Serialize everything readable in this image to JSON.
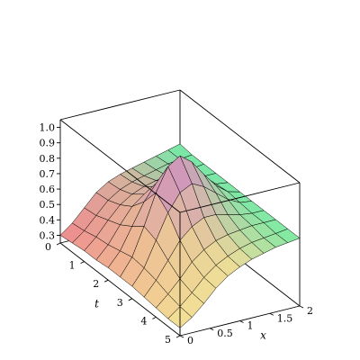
{
  "chart_data": {
    "type": "surface3d",
    "xlabel": "x",
    "ylabel": "t",
    "zlabel": "",
    "x_range": [
      0,
      2
    ],
    "t_range": [
      0,
      5
    ],
    "z_range": [
      0.25,
      1.05
    ],
    "x_ticks": [
      {
        "value": 0,
        "label": "0"
      },
      {
        "value": 0.5,
        "label": "0.5"
      },
      {
        "value": 1,
        "label": "1"
      },
      {
        "value": 1.5,
        "label": "1.5"
      },
      {
        "value": 2,
        "label": "2"
      }
    ],
    "t_ticks": [
      {
        "value": 0,
        "label": "0"
      },
      {
        "value": 1,
        "label": "1"
      },
      {
        "value": 2,
        "label": "2"
      },
      {
        "value": 3,
        "label": "3"
      },
      {
        "value": 4,
        "label": "4"
      },
      {
        "value": 5,
        "label": "5"
      }
    ],
    "z_ticks": [
      {
        "value": 0.3,
        "label": "0.3"
      },
      {
        "value": 0.4,
        "label": "0.4"
      },
      {
        "value": 0.5,
        "label": "0.5"
      },
      {
        "value": 0.6,
        "label": "0.6"
      },
      {
        "value": 0.7,
        "label": "0.7"
      },
      {
        "value": 0.8,
        "label": "0.8"
      },
      {
        "value": 0.9,
        "label": "0.9"
      },
      {
        "value": 1.0,
        "label": "1.0"
      }
    ],
    "x_values": [
      0,
      0.2,
      0.4,
      0.6,
      0.8,
      1.0,
      1.2,
      1.4,
      1.6,
      1.8,
      2.0
    ],
    "t_values": [
      0,
      0.5,
      1.0,
      1.5,
      2.0,
      2.5,
      3.0,
      3.5,
      4.0,
      4.5,
      5.0
    ],
    "z_values": [
      [
        0.3,
        0.36,
        0.44,
        0.52,
        0.57,
        0.6,
        0.62,
        0.64,
        0.66,
        0.68,
        0.7
      ],
      [
        0.31,
        0.37,
        0.45,
        0.53,
        0.58,
        0.61,
        0.63,
        0.65,
        0.67,
        0.68,
        0.69
      ],
      [
        0.32,
        0.39,
        0.48,
        0.56,
        0.61,
        0.64,
        0.66,
        0.67,
        0.68,
        0.68,
        0.69
      ],
      [
        0.32,
        0.4,
        0.51,
        0.61,
        0.67,
        0.7,
        0.72,
        0.71,
        0.7,
        0.69,
        0.69
      ],
      [
        0.33,
        0.42,
        0.56,
        0.7,
        0.8,
        0.84,
        0.83,
        0.78,
        0.73,
        0.7,
        0.69
      ],
      [
        0.33,
        0.44,
        0.62,
        0.82,
        0.97,
        1.02,
        0.96,
        0.86,
        0.77,
        0.71,
        0.69
      ],
      [
        0.33,
        0.43,
        0.59,
        0.75,
        0.86,
        0.9,
        0.86,
        0.8,
        0.74,
        0.7,
        0.69
      ],
      [
        0.32,
        0.41,
        0.52,
        0.63,
        0.7,
        0.74,
        0.74,
        0.72,
        0.7,
        0.69,
        0.69
      ],
      [
        0.31,
        0.38,
        0.46,
        0.55,
        0.61,
        0.65,
        0.67,
        0.68,
        0.69,
        0.69,
        0.69
      ],
      [
        0.3,
        0.36,
        0.43,
        0.51,
        0.57,
        0.61,
        0.64,
        0.66,
        0.67,
        0.68,
        0.69
      ],
      [
        0.3,
        0.35,
        0.42,
        0.5,
        0.56,
        0.6,
        0.63,
        0.65,
        0.67,
        0.68,
        0.69
      ]
    ],
    "colors": {
      "low": "#f3ed96",
      "mid_low": "#f08a8e",
      "mid": "#b8dcb0",
      "high_t": "#b048f0",
      "edge": "#62eda2"
    },
    "box": true,
    "grid": false,
    "legend": "none"
  }
}
